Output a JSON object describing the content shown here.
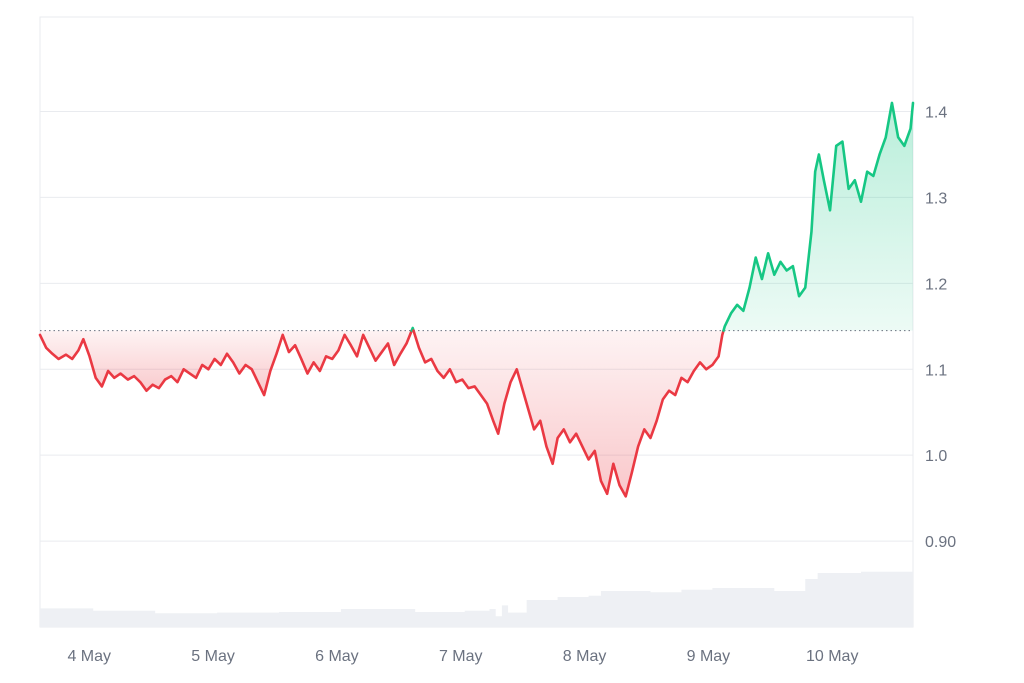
{
  "chart_data": {
    "type": "line",
    "title": "",
    "xlabel": "",
    "ylabel": "",
    "x_ticks": [
      "4 May",
      "5 May",
      "6 May",
      "7 May",
      "8 May",
      "9 May",
      "10 May"
    ],
    "y_ticks": [
      "0.90",
      "1.0",
      "1.1",
      "1.2",
      "1.3",
      "1.4"
    ],
    "y_tick_values": [
      0.9,
      1.0,
      1.1,
      1.2,
      1.3,
      1.4
    ],
    "ylim": [
      0.8,
      1.51
    ],
    "xlim": [
      3.57,
      10.62
    ],
    "baseline": 1.145,
    "grid": true,
    "colors": {
      "up": "#16c784",
      "down": "#ea3943",
      "up_fill": "#16c784",
      "down_fill": "#ea3943",
      "volume": "#eef0f4",
      "grid": "#e9ebef",
      "baseline": "#6b7280"
    },
    "series": [
      {
        "values": [
          [
            3.57,
            1.14
          ],
          [
            3.62,
            1.125
          ],
          [
            3.67,
            1.118
          ],
          [
            3.72,
            1.112
          ],
          [
            3.78,
            1.117
          ],
          [
            3.83,
            1.112
          ],
          [
            3.88,
            1.122
          ],
          [
            3.92,
            1.135
          ],
          [
            3.97,
            1.115
          ],
          [
            4.02,
            1.09
          ],
          [
            4.07,
            1.08
          ],
          [
            4.12,
            1.098
          ],
          [
            4.17,
            1.09
          ],
          [
            4.22,
            1.095
          ],
          [
            4.28,
            1.088
          ],
          [
            4.33,
            1.092
          ],
          [
            4.38,
            1.085
          ],
          [
            4.43,
            1.075
          ],
          [
            4.48,
            1.082
          ],
          [
            4.53,
            1.078
          ],
          [
            4.58,
            1.088
          ],
          [
            4.63,
            1.092
          ],
          [
            4.68,
            1.085
          ],
          [
            4.73,
            1.1
          ],
          [
            4.78,
            1.095
          ],
          [
            4.83,
            1.09
          ],
          [
            4.88,
            1.105
          ],
          [
            4.93,
            1.1
          ],
          [
            4.98,
            1.112
          ],
          [
            5.03,
            1.105
          ],
          [
            5.08,
            1.118
          ],
          [
            5.13,
            1.108
          ],
          [
            5.18,
            1.095
          ],
          [
            5.23,
            1.105
          ],
          [
            5.28,
            1.1
          ],
          [
            5.33,
            1.085
          ],
          [
            5.38,
            1.07
          ],
          [
            5.43,
            1.098
          ],
          [
            5.48,
            1.118
          ],
          [
            5.53,
            1.14
          ],
          [
            5.58,
            1.12
          ],
          [
            5.63,
            1.128
          ],
          [
            5.68,
            1.112
          ],
          [
            5.73,
            1.095
          ],
          [
            5.78,
            1.108
          ],
          [
            5.83,
            1.098
          ],
          [
            5.88,
            1.115
          ],
          [
            5.93,
            1.112
          ],
          [
            5.98,
            1.122
          ],
          [
            6.03,
            1.14
          ],
          [
            6.08,
            1.128
          ],
          [
            6.13,
            1.115
          ],
          [
            6.18,
            1.14
          ],
          [
            6.23,
            1.125
          ],
          [
            6.28,
            1.11
          ],
          [
            6.33,
            1.12
          ],
          [
            6.38,
            1.13
          ],
          [
            6.43,
            1.105
          ],
          [
            6.48,
            1.118
          ],
          [
            6.53,
            1.13
          ],
          [
            6.58,
            1.148
          ],
          [
            6.63,
            1.125
          ],
          [
            6.68,
            1.108
          ],
          [
            6.73,
            1.112
          ],
          [
            6.78,
            1.098
          ],
          [
            6.83,
            1.09
          ],
          [
            6.88,
            1.1
          ],
          [
            6.93,
            1.085
          ],
          [
            6.98,
            1.088
          ],
          [
            7.03,
            1.078
          ],
          [
            7.08,
            1.08
          ],
          [
            7.13,
            1.07
          ],
          [
            7.18,
            1.06
          ],
          [
            7.23,
            1.04
          ],
          [
            7.27,
            1.025
          ],
          [
            7.32,
            1.06
          ],
          [
            7.37,
            1.085
          ],
          [
            7.42,
            1.1
          ],
          [
            7.47,
            1.075
          ],
          [
            7.52,
            1.05
          ],
          [
            7.56,
            1.03
          ],
          [
            7.61,
            1.04
          ],
          [
            7.66,
            1.01
          ],
          [
            7.71,
            0.99
          ],
          [
            7.75,
            1.02
          ],
          [
            7.8,
            1.03
          ],
          [
            7.85,
            1.015
          ],
          [
            7.9,
            1.025
          ],
          [
            7.95,
            1.01
          ],
          [
            8.0,
            0.995
          ],
          [
            8.05,
            1.005
          ],
          [
            8.1,
            0.97
          ],
          [
            8.15,
            0.955
          ],
          [
            8.2,
            0.99
          ],
          [
            8.25,
            0.965
          ],
          [
            8.3,
            0.952
          ],
          [
            8.35,
            0.98
          ],
          [
            8.4,
            1.01
          ],
          [
            8.45,
            1.03
          ],
          [
            8.5,
            1.02
          ],
          [
            8.55,
            1.04
          ],
          [
            8.6,
            1.065
          ],
          [
            8.65,
            1.075
          ],
          [
            8.7,
            1.07
          ],
          [
            8.75,
            1.09
          ],
          [
            8.8,
            1.085
          ],
          [
            8.85,
            1.098
          ],
          [
            8.9,
            1.108
          ],
          [
            8.95,
            1.1
          ],
          [
            9.0,
            1.105
          ],
          [
            9.05,
            1.115
          ],
          [
            9.08,
            1.14
          ],
          [
            9.1,
            1.15
          ],
          [
            9.15,
            1.165
          ],
          [
            9.2,
            1.175
          ],
          [
            9.25,
            1.168
          ],
          [
            9.3,
            1.195
          ],
          [
            9.35,
            1.23
          ],
          [
            9.4,
            1.205
          ],
          [
            9.45,
            1.235
          ],
          [
            9.5,
            1.21
          ],
          [
            9.55,
            1.225
          ],
          [
            9.6,
            1.215
          ],
          [
            9.65,
            1.22
          ],
          [
            9.7,
            1.185
          ],
          [
            9.75,
            1.195
          ],
          [
            9.8,
            1.26
          ],
          [
            9.83,
            1.33
          ],
          [
            9.86,
            1.35
          ],
          [
            9.9,
            1.32
          ],
          [
            9.95,
            1.285
          ],
          [
            10.0,
            1.36
          ],
          [
            10.05,
            1.365
          ],
          [
            10.1,
            1.31
          ],
          [
            10.15,
            1.32
          ],
          [
            10.2,
            1.295
          ],
          [
            10.25,
            1.33
          ],
          [
            10.3,
            1.325
          ],
          [
            10.35,
            1.35
          ],
          [
            10.4,
            1.37
          ],
          [
            10.45,
            1.41
          ],
          [
            10.5,
            1.37
          ],
          [
            10.55,
            1.36
          ],
          [
            10.6,
            1.38
          ],
          [
            10.62,
            1.41
          ]
        ]
      }
    ],
    "volume": [
      [
        3.57,
        0.031
      ],
      [
        4.0,
        0.027
      ],
      [
        4.5,
        0.023
      ],
      [
        5.0,
        0.024
      ],
      [
        5.5,
        0.025
      ],
      [
        6.0,
        0.03
      ],
      [
        6.5,
        0.03
      ],
      [
        6.6,
        0.025
      ],
      [
        7.0,
        0.027
      ],
      [
        7.2,
        0.03
      ],
      [
        7.25,
        0.018
      ],
      [
        7.3,
        0.036
      ],
      [
        7.35,
        0.024
      ],
      [
        7.5,
        0.045
      ],
      [
        7.75,
        0.05
      ],
      [
        8.0,
        0.052
      ],
      [
        8.1,
        0.06
      ],
      [
        8.5,
        0.058
      ],
      [
        8.75,
        0.062
      ],
      [
        9.0,
        0.065
      ],
      [
        9.5,
        0.06
      ],
      [
        9.75,
        0.08
      ],
      [
        9.85,
        0.09
      ],
      [
        10.2,
        0.092
      ],
      [
        10.62,
        0.093
      ]
    ]
  }
}
